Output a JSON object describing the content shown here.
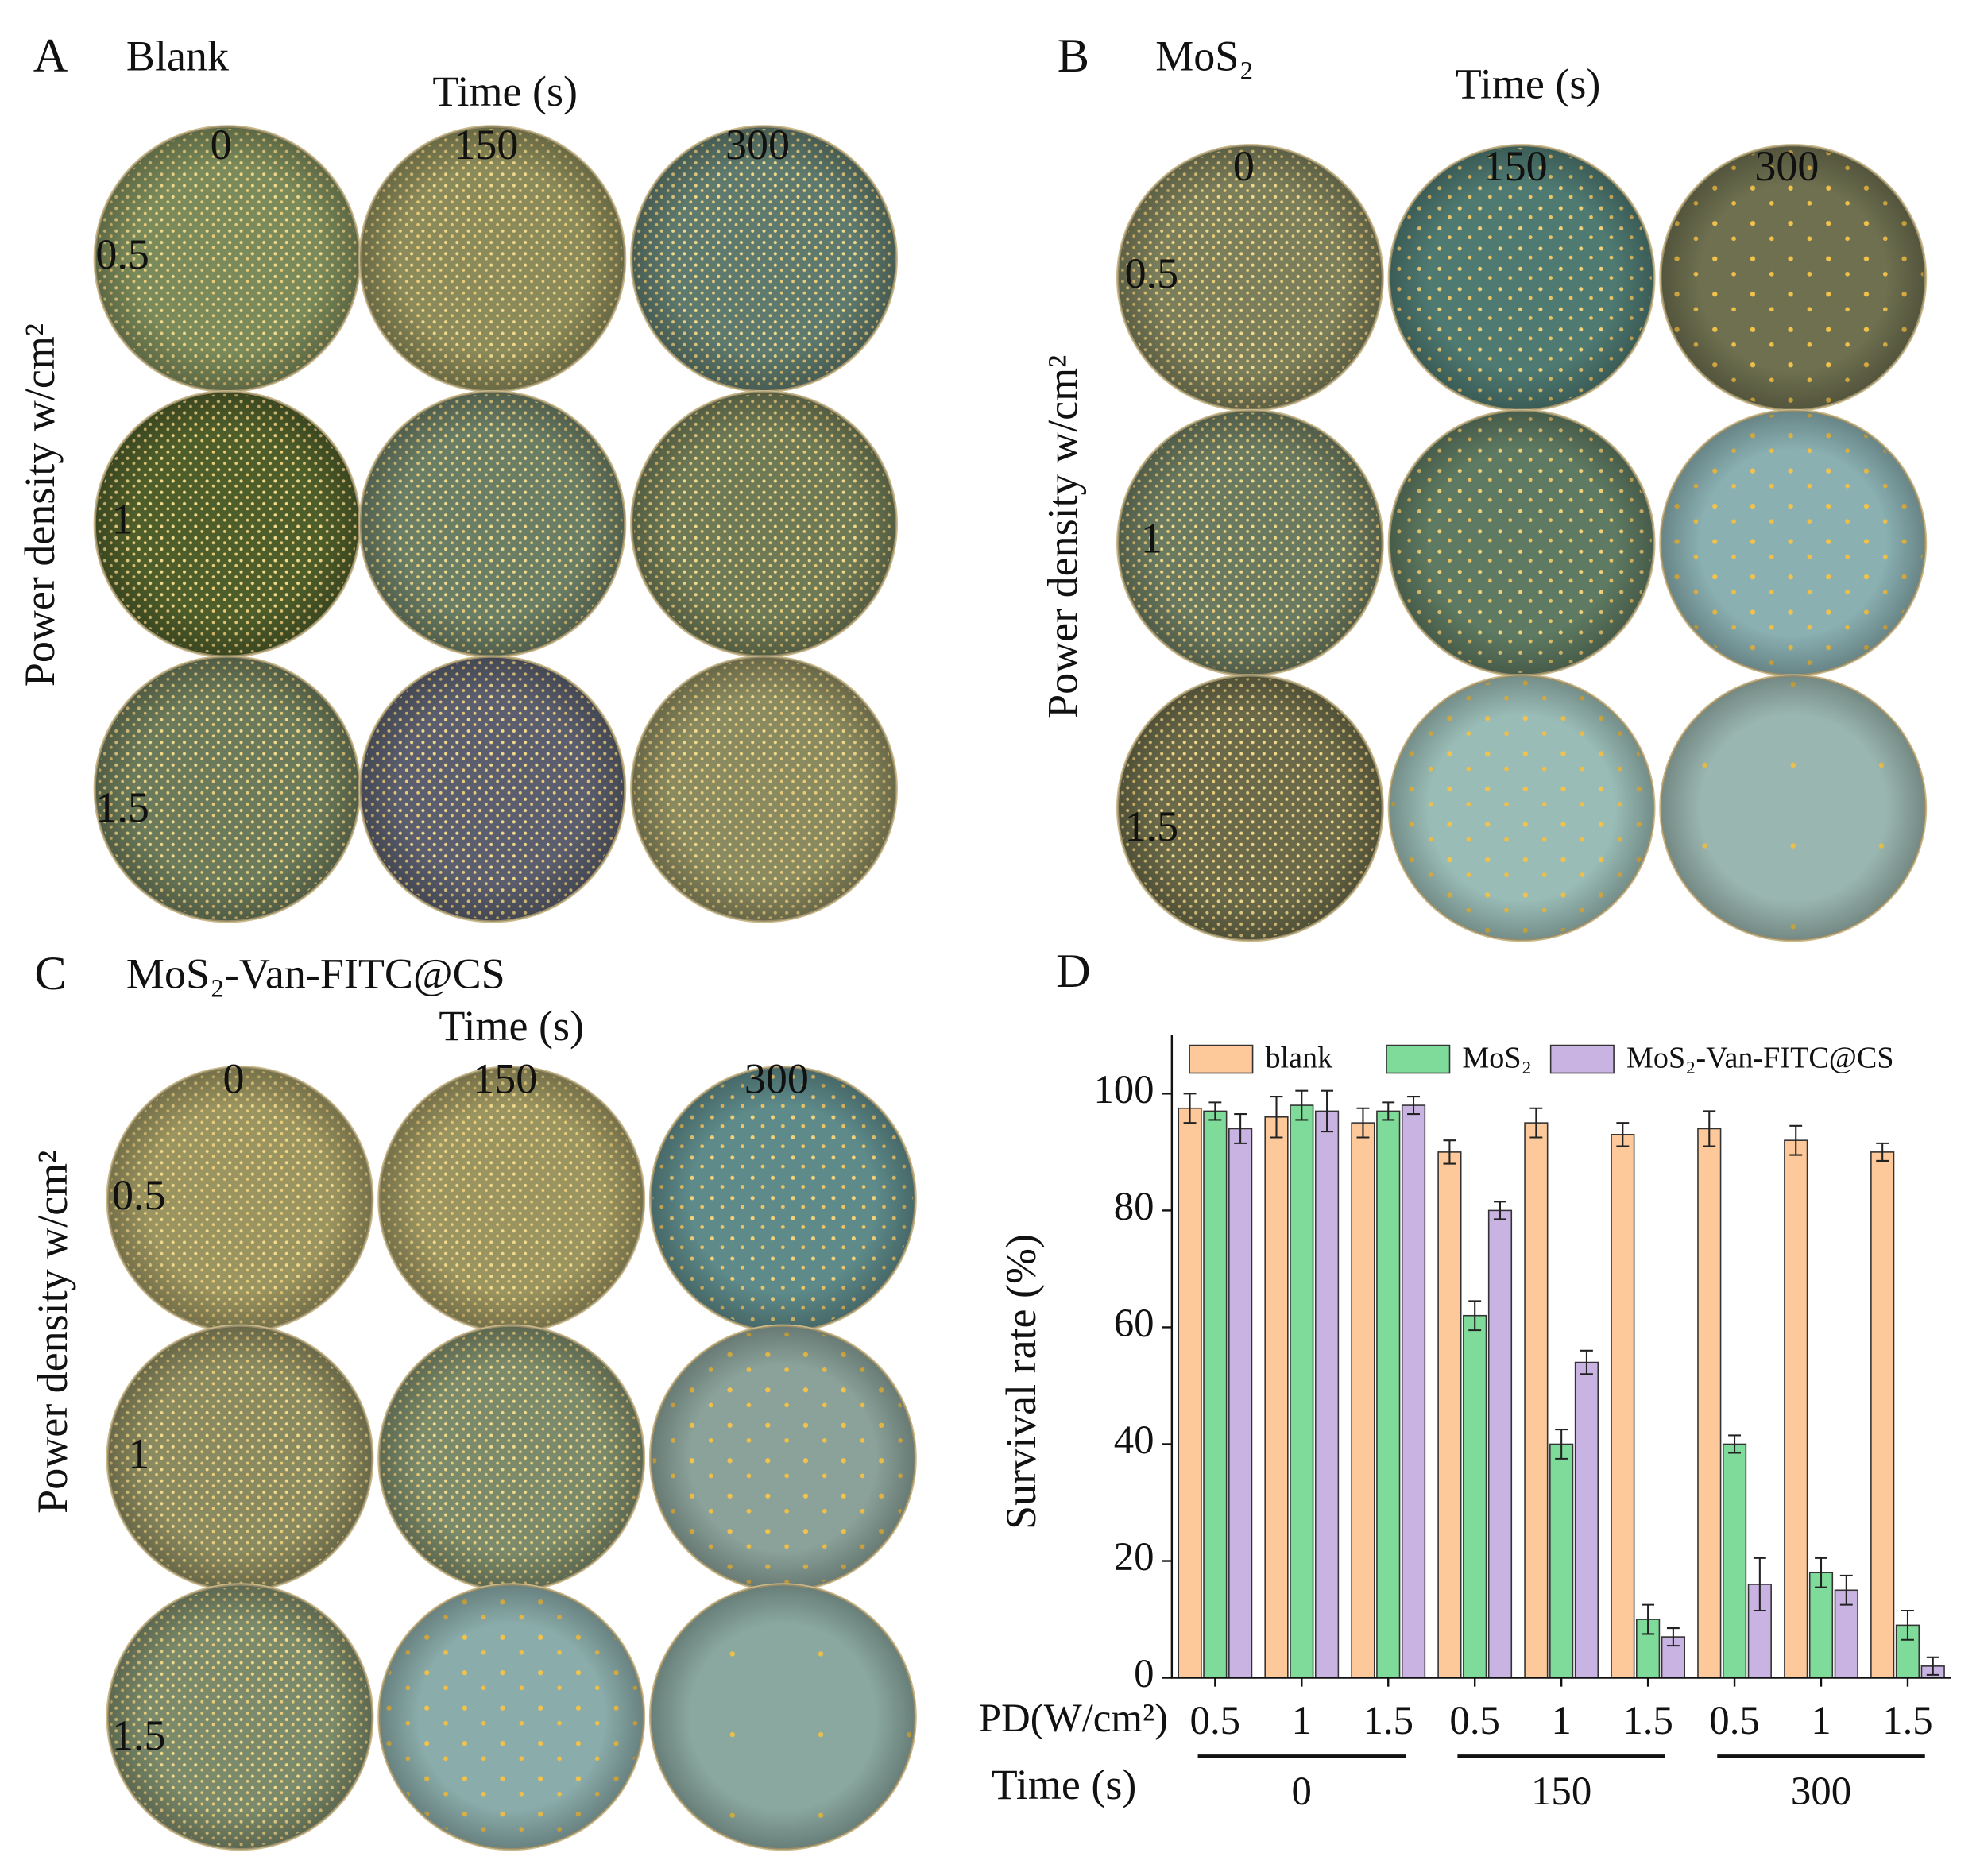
{
  "panels": [
    {
      "letter": "A",
      "title": "Blank",
      "time_label": "Time (s)",
      "times": [
        "0",
        "150",
        "300"
      ],
      "powers": [
        "0.5",
        "1",
        "1.5"
      ],
      "power_label": "Power density  w/cm²"
    },
    {
      "letter": "B",
      "title": "MoS₂",
      "time_label": "Time (s)",
      "times": [
        "0",
        "150",
        "300"
      ],
      "powers": [
        "0.5",
        "1",
        "1.5"
      ],
      "power_label": "Power density  w/cm²"
    },
    {
      "letter": "C",
      "title": "MoS₂-Van-FITC@CS",
      "time_label": "Time (s)",
      "times": [
        "0",
        "150",
        "300"
      ],
      "powers": [
        "0.5",
        "1",
        "1.5"
      ],
      "power_label": "Power density  w/cm²"
    }
  ],
  "chart_data": {
    "type": "bar",
    "label": "D",
    "y_label": "Survival rate (%)",
    "category_label": "PD(W/cm²)",
    "group_label": "Time (s)",
    "categories": [
      "0.5",
      "1",
      "1.5",
      "0.5",
      "1",
      "1.5",
      "0.5",
      "1",
      "1.5"
    ],
    "groups": [
      "0",
      "150",
      "300"
    ],
    "series": [
      {
        "name": "blank",
        "color": "#fdc99a",
        "values": [
          97.5,
          96,
          95,
          90,
          95,
          93,
          94,
          92,
          90
        ],
        "errors": [
          2.5,
          3.5,
          2.5,
          2,
          2.5,
          2,
          3,
          2.5,
          1.5
        ]
      },
      {
        "name": "MoS₂",
        "color": "#7fdb9a",
        "values": [
          97,
          98,
          97,
          62,
          40,
          10,
          40,
          18,
          9
        ],
        "errors": [
          1.5,
          2.5,
          1.5,
          2.5,
          2.5,
          2.5,
          1.5,
          2.5,
          2.5
        ]
      },
      {
        "name": "MoS₂-Van-FITC@CS",
        "color": "#c9b3e2",
        "values": [
          94,
          97,
          98,
          80,
          54,
          7,
          16,
          15,
          2
        ],
        "errors": [
          2.5,
          3.5,
          1.5,
          1.5,
          2,
          1.5,
          4.5,
          2.5,
          1.5
        ]
      }
    ],
    "ylim": [
      0,
      110
    ],
    "yticks": [
      0,
      20,
      40,
      60,
      80,
      100
    ]
  }
}
